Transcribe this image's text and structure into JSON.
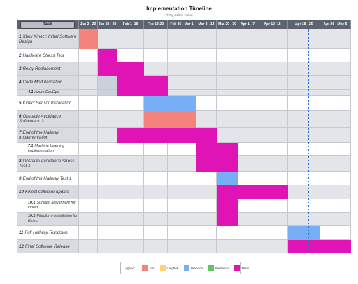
{
  "header": {
    "title": "Implementation Timeline",
    "subtitle": "Thirty-Gallon Robot"
  },
  "task_button": "Task",
  "columns": [
    "Jan 2 - 29",
    "Jan 22 - 28",
    "Feb 1 -18",
    "Feb 13-20",
    "Feb 26 - Mar 1",
    "Mar 3 - 14",
    "Mar 20 - 30",
    "Apr 1 - 7",
    "Apr 10- 18",
    "Apr 18 - 25",
    "Apr 26 - May 5"
  ],
  "rows": [
    {
      "num": "1",
      "text": "Xbox Kinect: Initial Software Design",
      "bars": [
        [
          0,
          0,
          0
        ]
      ]
    },
    {
      "num": "2",
      "text": "Hardware Stress Test",
      "bars": [
        [
          1,
          1,
          4
        ]
      ]
    },
    {
      "num": "3",
      "text": "Relay Replacement",
      "bars": [
        [
          1,
          2,
          4
        ]
      ]
    },
    {
      "num": "4",
      "text": "Code Modularization",
      "bars": [
        [
          2,
          3,
          4
        ]
      ]
    },
    {
      "num": "4.1",
      "text": "Azure DevOps",
      "bars": [
        [
          2,
          3,
          4
        ]
      ]
    },
    {
      "num": "5",
      "text": "Kinect Sensor Installation",
      "bars": [
        [
          3,
          4,
          2
        ]
      ]
    },
    {
      "num": "6",
      "text": "Obstacle Avoidance Software v. 2",
      "bars": [
        [
          3,
          4,
          0
        ]
      ]
    },
    {
      "num": "7",
      "text": "End of the Hallway Implementation",
      "bars": [
        [
          2,
          5,
          4
        ]
      ]
    },
    {
      "num": "7.1",
      "text": "Machine Learning Implementation",
      "bars": [
        [
          5,
          6,
          4
        ]
      ]
    },
    {
      "num": "8",
      "text": "Obstacle Avoidance Stress Test 1",
      "bars": [
        [
          5,
          6,
          4
        ]
      ]
    },
    {
      "num": "9",
      "text": "End of the Hallway Test 1",
      "bars": [
        [
          6,
          6,
          2
        ]
      ]
    },
    {
      "num": "10",
      "text": "Kinect software update",
      "bars": [
        [
          6,
          8,
          4
        ]
      ]
    },
    {
      "num": "10.1",
      "text": "Sunlight adjustment for kinect",
      "bars": [
        [
          6,
          6,
          4
        ]
      ]
    },
    {
      "num": "10.2",
      "text": "Platoform Installation for Kinect",
      "bars": [
        [
          6,
          6,
          4
        ]
      ]
    },
    {
      "num": "11",
      "text": "Full Hallway Rundown",
      "bars": [
        [
          9,
          9,
          2
        ]
      ]
    },
    {
      "num": "12",
      "text": "Final Software Release",
      "bars": [
        [
          9,
          10,
          4
        ]
      ]
    }
  ],
  "legend_title": "Legend:",
  "legend": [
    {
      "name": "Jon",
      "color": "#f4837d"
    },
    {
      "name": "Ulugbek",
      "color": "#ffd27a"
    },
    {
      "name": "Brandon",
      "color": "#77aef5"
    },
    {
      "name": "Fernando",
      "color": "#5fc46a"
    },
    {
      "name": "Team",
      "color": "#e013b4"
    }
  ]
}
